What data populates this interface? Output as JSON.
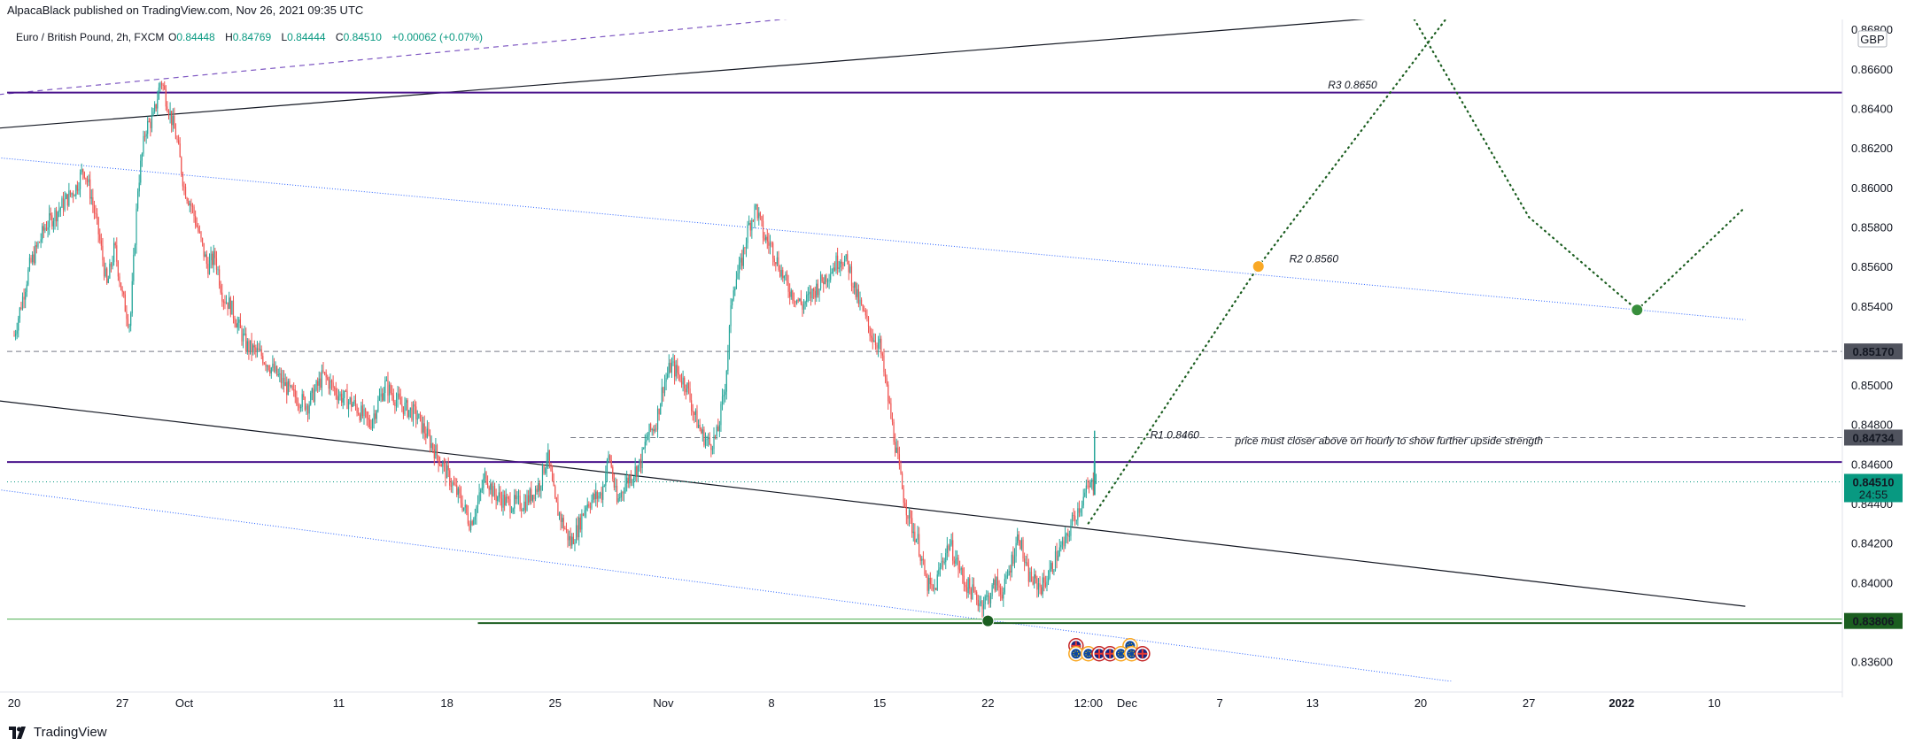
{
  "header": {
    "published": "AlpacaBlack published on TradingView.com, Nov 26, 2021 09:35 UTC"
  },
  "footer": {
    "brand": "TradingView"
  },
  "colors": {
    "up": "#26a69a",
    "down": "#ef5350",
    "purple": "#4a148c",
    "blue_dotted": "#2962ff",
    "green_line": "#1b5e20",
    "last_price": "#089981"
  },
  "chart_data": {
    "type": "candlestick",
    "symbol": "Euro / British Pound, 2h, FXCM",
    "ohlc": {
      "o_label": "O",
      "o": "0.84448",
      "h_label": "H",
      "h": "0.84769",
      "l_label": "L",
      "l": "0.84444",
      "c_label": "C",
      "c": "0.84510",
      "change": "+0.00062 (+0.07%)"
    },
    "currency": "GBP",
    "ylim": [
      0.835,
      0.8685
    ],
    "y_ticks": [
      {
        "v": 0.866,
        "label": "0.86600"
      },
      {
        "v": 0.864,
        "label": "0.86400"
      },
      {
        "v": 0.862,
        "label": "0.86200"
      },
      {
        "v": 0.86,
        "label": "0.86000"
      },
      {
        "v": 0.858,
        "label": "0.85800"
      },
      {
        "v": 0.856,
        "label": "0.85600"
      },
      {
        "v": 0.854,
        "label": "0.85400"
      },
      {
        "v": 0.85,
        "label": "0.85000"
      },
      {
        "v": 0.848,
        "label": "0.84800"
      },
      {
        "v": 0.846,
        "label": "0.84600"
      },
      {
        "v": 0.844,
        "label": "0.84400"
      },
      {
        "v": 0.842,
        "label": "0.84200"
      },
      {
        "v": 0.84,
        "label": "0.84000"
      },
      {
        "v": 0.836,
        "label": "0.83600"
      }
    ],
    "top_partial_tick": {
      "v": 0.868,
      "label": "0.86800"
    },
    "price_tags": [
      {
        "v": 0.8517,
        "label": "0.85170",
        "bg": "#50535e"
      },
      {
        "v": 0.84734,
        "label": "0.84734",
        "bg": "#50535e"
      },
      {
        "v": 0.8451,
        "label": "0.84510",
        "countdown": "24:55",
        "bg": "#089981"
      },
      {
        "v": 0.83806,
        "label": "0.83806",
        "bg": "#1b5e20"
      }
    ],
    "x_ticks": [
      {
        "d": 0,
        "label": "20"
      },
      {
        "d": 7,
        "label": "27"
      },
      {
        "d": 11,
        "label": "Oct"
      },
      {
        "d": 21,
        "label": "11"
      },
      {
        "d": 28,
        "label": "18"
      },
      {
        "d": 35,
        "label": "25"
      },
      {
        "d": 42,
        "label": "Nov"
      },
      {
        "d": 49,
        "label": "8"
      },
      {
        "d": 56,
        "label": "15"
      },
      {
        "d": 63,
        "label": "22"
      },
      {
        "d": 69.5,
        "label": "12:00"
      },
      {
        "d": 72,
        "label": "Dec"
      },
      {
        "d": 78,
        "label": "7"
      },
      {
        "d": 84,
        "label": "13"
      },
      {
        "d": 91,
        "label": "20"
      },
      {
        "d": 98,
        "label": "27"
      },
      {
        "d": 104,
        "label": "2022"
      },
      {
        "d": 110,
        "label": "10"
      }
    ],
    "x_note": "x in days since Sep 20, 2021",
    "path": [
      [
        0,
        0.8525
      ],
      [
        1,
        0.856
      ],
      [
        2,
        0.858
      ],
      [
        3,
        0.859
      ],
      [
        4,
        0.86
      ],
      [
        4.5,
        0.861
      ],
      [
        5,
        0.8595
      ],
      [
        5.5,
        0.8575
      ],
      [
        6,
        0.855
      ],
      [
        6.5,
        0.857
      ],
      [
        7,
        0.8545
      ],
      [
        7.5,
        0.853
      ],
      [
        8,
        0.86
      ],
      [
        8.5,
        0.863
      ],
      [
        9,
        0.8635
      ],
      [
        9.5,
        0.8655
      ],
      [
        10,
        0.864
      ],
      [
        10.5,
        0.8625
      ],
      [
        11,
        0.86
      ],
      [
        11.5,
        0.859
      ],
      [
        12,
        0.8575
      ],
      [
        12.5,
        0.856
      ],
      [
        13,
        0.8565
      ],
      [
        13.5,
        0.8545
      ],
      [
        14,
        0.854
      ],
      [
        15,
        0.852
      ],
      [
        16,
        0.8515
      ],
      [
        17,
        0.8505
      ],
      [
        18,
        0.8495
      ],
      [
        19,
        0.849
      ],
      [
        20,
        0.8505
      ],
      [
        21,
        0.8495
      ],
      [
        22,
        0.849
      ],
      [
        23,
        0.848
      ],
      [
        24,
        0.85
      ],
      [
        25,
        0.849
      ],
      [
        26,
        0.8485
      ],
      [
        27,
        0.847
      ],
      [
        28,
        0.8455
      ],
      [
        29,
        0.844
      ],
      [
        29.5,
        0.843
      ],
      [
        30,
        0.844
      ],
      [
        30.5,
        0.8455
      ],
      [
        31,
        0.8445
      ],
      [
        32,
        0.844
      ],
      [
        33,
        0.844
      ],
      [
        34,
        0.845
      ],
      [
        34.5,
        0.8465
      ],
      [
        35,
        0.844
      ],
      [
        35.5,
        0.843
      ],
      [
        36,
        0.842
      ],
      [
        36.5,
        0.8428
      ],
      [
        37,
        0.844
      ],
      [
        38,
        0.8445
      ],
      [
        38.5,
        0.8465
      ],
      [
        39,
        0.844
      ],
      [
        39.5,
        0.845
      ],
      [
        40,
        0.8455
      ],
      [
        40.5,
        0.846
      ],
      [
        41,
        0.8475
      ],
      [
        41.5,
        0.848
      ],
      [
        42,
        0.85
      ],
      [
        42.5,
        0.851
      ],
      [
        43,
        0.8505
      ],
      [
        43.5,
        0.85
      ],
      [
        44,
        0.8485
      ],
      [
        44.5,
        0.8475
      ],
      [
        45,
        0.847
      ],
      [
        45.5,
        0.8475
      ],
      [
        46,
        0.85
      ],
      [
        46.5,
        0.855
      ],
      [
        47,
        0.856
      ],
      [
        47.5,
        0.858
      ],
      [
        48,
        0.859
      ],
      [
        48.5,
        0.8575
      ],
      [
        49,
        0.857
      ],
      [
        49.5,
        0.856
      ],
      [
        50,
        0.855
      ],
      [
        50.5,
        0.8545
      ],
      [
        51,
        0.854
      ],
      [
        52,
        0.855
      ],
      [
        53,
        0.856
      ],
      [
        53.5,
        0.8565
      ],
      [
        54,
        0.856
      ],
      [
        54.5,
        0.8545
      ],
      [
        55,
        0.8535
      ],
      [
        55.5,
        0.8525
      ],
      [
        56,
        0.852
      ],
      [
        56.5,
        0.8495
      ],
      [
        57,
        0.847
      ],
      [
        57.5,
        0.8445
      ],
      [
        58,
        0.843
      ],
      [
        58.5,
        0.842
      ],
      [
        59,
        0.84
      ],
      [
        59.5,
        0.8395
      ],
      [
        60,
        0.841
      ],
      [
        60.5,
        0.842
      ],
      [
        61,
        0.841
      ],
      [
        61.5,
        0.84
      ],
      [
        62,
        0.8395
      ],
      [
        62.5,
        0.839
      ],
      [
        63,
        0.8392
      ],
      [
        63.5,
        0.84
      ],
      [
        64,
        0.8395
      ],
      [
        64.5,
        0.841
      ],
      [
        65,
        0.8425
      ],
      [
        65.5,
        0.8405
      ],
      [
        66,
        0.84
      ],
      [
        66.5,
        0.8398
      ],
      [
        67,
        0.8405
      ],
      [
        67.5,
        0.8415
      ],
      [
        68,
        0.842
      ],
      [
        68.5,
        0.8432
      ],
      [
        69,
        0.844
      ],
      [
        69.5,
        0.8448
      ],
      [
        70,
        0.8451
      ]
    ],
    "horizontal_lines": [
      {
        "v": 0.8648,
        "color": "#4a148c",
        "width": 2,
        "x_start": 0
      },
      {
        "v": 0.8461,
        "color": "#4a148c",
        "width": 2,
        "x_start": 0
      },
      {
        "v": 0.8517,
        "color": "#787b86",
        "width": 1,
        "dash": "6,4",
        "x_start": 0
      },
      {
        "v": 0.84734,
        "color": "#787b86",
        "width": 1,
        "dash": "6,4",
        "x_start": 36
      },
      {
        "v": 0.8451,
        "color": "#089981",
        "width": 1,
        "dash": "1,3",
        "x_start": 0
      },
      {
        "v": 0.83815,
        "color": "#4caf50",
        "width": 1,
        "x_start": 0
      },
      {
        "v": 0.83795,
        "color": "#1b5e20",
        "width": 2,
        "x_start": 30
      }
    ],
    "trend_lines": [
      {
        "x1": -1,
        "y1": 0.863,
        "x2": 103,
        "y2": 0.8695,
        "color": "#131722",
        "width": 1.2
      },
      {
        "x1": -1,
        "y1": 0.8647,
        "x2": 59,
        "y2": 0.8692,
        "color": "#7e57c2",
        "width": 1.2,
        "dash": "6,5"
      },
      {
        "x1": -1,
        "y1": 0.8492,
        "x2": 112,
        "y2": 0.8388,
        "color": "#131722",
        "width": 1.2
      },
      {
        "x1": -1,
        "y1": 0.8615,
        "x2": 112,
        "y2": 0.8533,
        "color": "#2962ff",
        "width": 1,
        "dash": "1,2"
      },
      {
        "x1": -1,
        "y1": 0.8447,
        "x2": 93,
        "y2": 0.835,
        "color": "#2962ff",
        "width": 1,
        "dash": "1,2"
      }
    ],
    "projection": [
      [
        69.5,
        0.843
      ],
      [
        80.5,
        0.856
      ],
      [
        96,
        0.872
      ]
    ],
    "projection_2": [
      [
        88,
        0.872
      ],
      [
        98,
        0.8585
      ],
      [
        105,
        0.8538
      ],
      [
        112,
        0.859
      ]
    ],
    "markers": [
      {
        "x": 80.5,
        "v": 0.856,
        "color": "#f9a825"
      },
      {
        "x": 105,
        "v": 0.8538,
        "color": "#388e3c"
      },
      {
        "x": 63,
        "v": 0.83806,
        "color": "#1b5e20"
      }
    ],
    "annotations": [
      {
        "x": 85,
        "v": 0.865,
        "text": "R3 0.8650"
      },
      {
        "x": 82.5,
        "v": 0.8562,
        "text": "R2 0.8560"
      },
      {
        "x": 73.5,
        "v": 0.8473,
        "text": "R1 0.8460"
      },
      {
        "x": 79,
        "v": 0.847,
        "text": "price must closer above on hourly to show further upside strength"
      }
    ],
    "event_badges": [
      {
        "x": 68.7,
        "v": 0.8368,
        "kind": "uk"
      },
      {
        "x": 72.2,
        "v": 0.8368,
        "kind": "eu"
      },
      {
        "x": 68.7,
        "v": 0.8364,
        "kind": "eu"
      },
      {
        "x": 69.5,
        "v": 0.8364,
        "kind": "eu"
      },
      {
        "x": 70.2,
        "v": 0.8364,
        "kind": "uk"
      },
      {
        "x": 70.9,
        "v": 0.8364,
        "kind": "uk"
      },
      {
        "x": 71.6,
        "v": 0.8364,
        "kind": "eu"
      },
      {
        "x": 72.3,
        "v": 0.8364,
        "kind": "eu"
      },
      {
        "x": 73.0,
        "v": 0.8364,
        "kind": "uk"
      }
    ]
  }
}
